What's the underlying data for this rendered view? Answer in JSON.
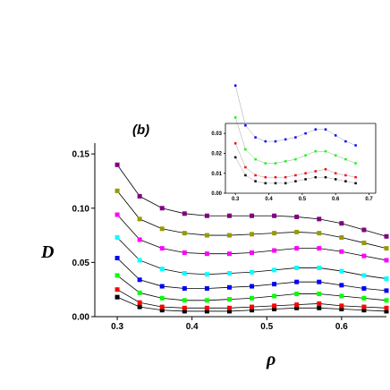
{
  "chart_data": [
    {
      "type": "line",
      "panel_label": "(b)",
      "xlabel": "ρ",
      "ylabel": "D",
      "xlim": [
        0.27,
        0.66
      ],
      "ylim": [
        0.0,
        0.16
      ],
      "x_ticks": [
        "0.3",
        "0.4",
        "0.5",
        "0.6"
      ],
      "y_ticks": [
        "0.00",
        "0.05",
        "0.10",
        "0.15"
      ],
      "x_tick_values": [
        0.3,
        0.4,
        0.5,
        0.6
      ],
      "y_tick_values": [
        0.0,
        0.05,
        0.1,
        0.15
      ],
      "x": [
        0.3,
        0.33,
        0.36,
        0.39,
        0.42,
        0.45,
        0.48,
        0.51,
        0.54,
        0.57,
        0.6,
        0.63,
        0.66
      ],
      "series": [
        {
          "color": "#000000",
          "values": [
            0.018,
            0.009,
            0.006,
            0.005,
            0.005,
            0.005,
            0.006,
            0.007,
            0.008,
            0.008,
            0.007,
            0.006,
            0.005
          ]
        },
        {
          "color": "#ff0000",
          "values": [
            0.025,
            0.013,
            0.009,
            0.008,
            0.008,
            0.008,
            0.009,
            0.01,
            0.011,
            0.012,
            0.01,
            0.009,
            0.008
          ]
        },
        {
          "color": "#00ff00",
          "values": [
            0.038,
            0.022,
            0.017,
            0.015,
            0.015,
            0.016,
            0.017,
            0.019,
            0.021,
            0.021,
            0.019,
            0.017,
            0.015
          ]
        },
        {
          "color": "#0000ff",
          "values": [
            0.054,
            0.034,
            0.028,
            0.026,
            0.026,
            0.027,
            0.028,
            0.03,
            0.032,
            0.032,
            0.029,
            0.026,
            0.024
          ]
        },
        {
          "color": "#00ffff",
          "values": [
            0.073,
            0.052,
            0.044,
            0.04,
            0.039,
            0.04,
            0.041,
            0.043,
            0.045,
            0.045,
            0.042,
            0.038,
            0.035
          ]
        },
        {
          "color": "#ff00ff",
          "values": [
            0.094,
            0.071,
            0.063,
            0.059,
            0.058,
            0.058,
            0.059,
            0.061,
            0.063,
            0.063,
            0.06,
            0.056,
            0.052
          ]
        },
        {
          "color": "#999900",
          "values": [
            0.116,
            0.09,
            0.081,
            0.077,
            0.075,
            0.075,
            0.076,
            0.077,
            0.078,
            0.077,
            0.073,
            0.068,
            0.063
          ]
        },
        {
          "color": "#800080",
          "values": [
            0.14,
            0.111,
            0.1,
            0.095,
            0.093,
            0.093,
            0.093,
            0.093,
            0.092,
            0.09,
            0.086,
            0.08,
            0.074
          ]
        }
      ]
    },
    {
      "type": "line",
      "role": "inset",
      "xlim": [
        0.27,
        0.72
      ],
      "ylim": [
        0.0,
        0.035
      ],
      "x_ticks": [
        "0.3",
        "0.4",
        "0.5",
        "0.6",
        "0.7"
      ],
      "y_ticks": [
        "0.00",
        "0.01",
        "0.02",
        "0.03"
      ],
      "x_tick_values": [
        0.3,
        0.4,
        0.5,
        0.6,
        0.7
      ],
      "y_tick_values": [
        0.0,
        0.01,
        0.02,
        0.03
      ],
      "x": [
        0.3,
        0.33,
        0.36,
        0.39,
        0.42,
        0.45,
        0.48,
        0.51,
        0.54,
        0.57,
        0.6,
        0.63,
        0.66
      ],
      "series": [
        {
          "color": "#000000",
          "values": [
            0.018,
            0.009,
            0.006,
            0.005,
            0.005,
            0.005,
            0.006,
            0.007,
            0.008,
            0.008,
            0.007,
            0.006,
            0.005
          ]
        },
        {
          "color": "#ff0000",
          "values": [
            0.025,
            0.013,
            0.009,
            0.008,
            0.008,
            0.008,
            0.009,
            0.01,
            0.011,
            0.012,
            0.01,
            0.009,
            0.008
          ]
        },
        {
          "color": "#00ff00",
          "values": [
            0.038,
            0.022,
            0.017,
            0.015,
            0.015,
            0.016,
            0.017,
            0.019,
            0.021,
            0.021,
            0.019,
            0.017,
            0.015
          ]
        },
        {
          "color": "#0000ff",
          "values": [
            0.054,
            0.034,
            0.028,
            0.026,
            0.026,
            0.027,
            0.028,
            0.03,
            0.032,
            0.032,
            0.029,
            0.026,
            0.024
          ]
        }
      ]
    }
  ]
}
